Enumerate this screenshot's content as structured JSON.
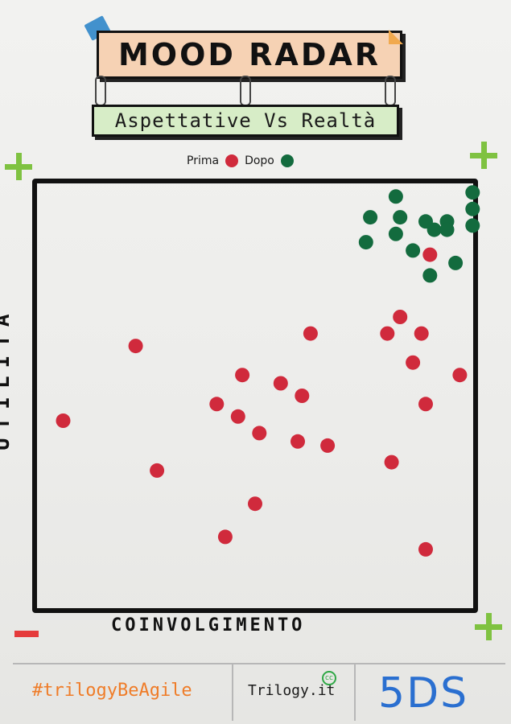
{
  "header": {
    "title": "MOOD RADAR",
    "subtitle": "Aspettative Vs Realtà"
  },
  "legend": {
    "before_label": "Prima",
    "after_label": "Dopo",
    "before_color": "#d02a3c",
    "after_color": "#136b3e"
  },
  "colors": {
    "plus_marker": "#7fc241",
    "minus_marker": "#e53b3b",
    "hashtag": "#ef7c28",
    "code": "#2a6fd0",
    "title_banner": "#f6d2b4",
    "subtitle_banner": "#d7edc7"
  },
  "axes": {
    "x_label": "COINVOLGIMENTO",
    "y_label": "UTILITÀ"
  },
  "chart_data": {
    "type": "scatter",
    "xlim": [
      0,
      100
    ],
    "ylim": [
      0,
      100
    ],
    "series": [
      {
        "name": "Prima",
        "points": [
          [
            91,
            84
          ],
          [
            87,
            58
          ],
          [
            84,
            69
          ],
          [
            89,
            65
          ],
          [
            81,
            65
          ],
          [
            63,
            65
          ],
          [
            22,
            62
          ],
          [
            47,
            55
          ],
          [
            56,
            53
          ],
          [
            61,
            50
          ],
          [
            90,
            48
          ],
          [
            98,
            55
          ],
          [
            41,
            48
          ],
          [
            46,
            45
          ],
          [
            51,
            41
          ],
          [
            60,
            39
          ],
          [
            67,
            38
          ],
          [
            82,
            34
          ],
          [
            27,
            32
          ],
          [
            50,
            24
          ],
          [
            43,
            16
          ],
          [
            90,
            13
          ],
          [
            5,
            44
          ]
        ]
      },
      {
        "name": "Dopo",
        "points": [
          [
            83,
            98
          ],
          [
            101,
            99
          ],
          [
            77,
            93
          ],
          [
            84,
            93
          ],
          [
            90,
            92
          ],
          [
            95,
            92
          ],
          [
            101,
            95
          ],
          [
            92,
            90
          ],
          [
            95,
            90
          ],
          [
            101,
            91
          ],
          [
            83,
            89
          ],
          [
            76,
            87
          ],
          [
            87,
            85
          ],
          [
            97,
            82
          ],
          [
            91,
            79
          ]
        ]
      }
    ]
  },
  "footer": {
    "hashtag": "#trilogyBeAgile",
    "site": "Trilogy.it",
    "license": "cc",
    "code": "5DS"
  }
}
